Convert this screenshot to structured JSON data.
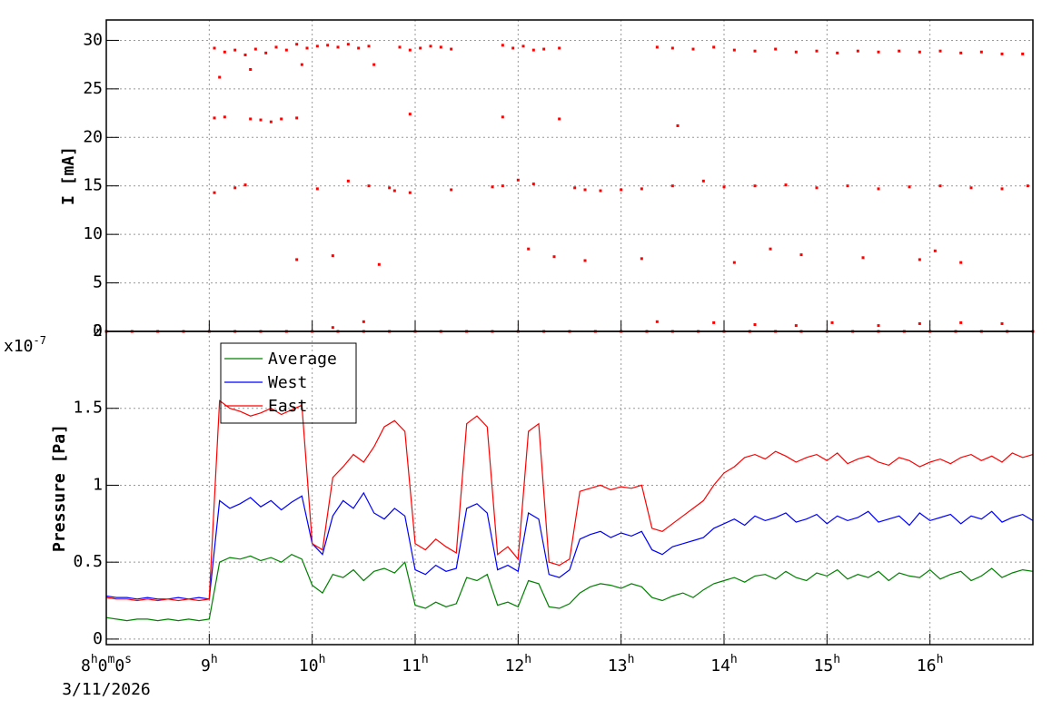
{
  "chart_data": [
    {
      "type": "scatter",
      "ylabel": "I [mA]",
      "color": "#ff0000",
      "xlim": [
        8,
        17
      ],
      "ylim": [
        0,
        32.1
      ],
      "yticks": [
        0,
        5,
        10,
        15,
        20,
        25,
        30
      ],
      "grid": true,
      "x": [
        9.05,
        9.15,
        9.25,
        9.35,
        9.45,
        9.55,
        9.65,
        9.75,
        9.85,
        9.95,
        10.05,
        10.15,
        10.25,
        10.35,
        10.45,
        10.55,
        10.85,
        10.95,
        11.05,
        11.15,
        11.25,
        11.35,
        11.85,
        11.95,
        12.05,
        12.15,
        12.25,
        12.4,
        13.35,
        13.5,
        13.7,
        13.9,
        14.1,
        14.3,
        14.5,
        14.7,
        14.9,
        15.1,
        15.3,
        15.5,
        15.7,
        15.9,
        16.1,
        16.3,
        16.5,
        16.7,
        16.9,
        9.1,
        9.4,
        10.6,
        9.9,
        9.05,
        9.15,
        9.4,
        9.5,
        9.6,
        9.7,
        9.85,
        10.95,
        11.85,
        12.4,
        13.55,
        9.05,
        9.25,
        9.35,
        10.05,
        10.35,
        10.55,
        10.75,
        10.8,
        10.95,
        11.35,
        11.75,
        11.85,
        12.0,
        12.15,
        12.55,
        12.65,
        12.8,
        13.0,
        13.2,
        13.5,
        13.8,
        14.0,
        14.3,
        14.6,
        14.9,
        15.2,
        15.5,
        15.8,
        16.1,
        16.4,
        16.7,
        16.95,
        9.85,
        10.2,
        12.1,
        12.35,
        12.65,
        13.2,
        14.1,
        14.45,
        14.75,
        15.35,
        15.9,
        16.05,
        16.3,
        10.65,
        10.2,
        10.5,
        13.35,
        13.9,
        14.3,
        14.7,
        15.05,
        15.5,
        15.9,
        16.3,
        16.7,
        8.0,
        8.25,
        8.5,
        8.75,
        9.0,
        9.25,
        9.5,
        9.75,
        10.0,
        10.25,
        10.5,
        10.75,
        11.0,
        11.25,
        11.5,
        11.75,
        12.0,
        12.25,
        12.5,
        12.75,
        13.0,
        13.25,
        13.5,
        13.75,
        14.0,
        14.25,
        14.5,
        14.75,
        15.0,
        15.25,
        15.5,
        15.75,
        16.0,
        16.25,
        16.5,
        16.75,
        17.0
      ],
      "values": [
        29.2,
        28.8,
        29.0,
        28.5,
        29.1,
        28.7,
        29.3,
        29.0,
        29.6,
        29.2,
        29.4,
        29.5,
        29.3,
        29.6,
        29.2,
        29.4,
        29.3,
        29.0,
        29.2,
        29.4,
        29.3,
        29.1,
        29.5,
        29.2,
        29.4,
        29.0,
        29.1,
        29.2,
        29.3,
        29.2,
        29.1,
        29.3,
        29.0,
        28.9,
        29.1,
        28.8,
        28.9,
        28.7,
        28.9,
        28.8,
        28.9,
        28.8,
        28.9,
        28.7,
        28.8,
        28.6,
        28.6,
        26.2,
        27.0,
        27.5,
        27.5,
        22.0,
        22.1,
        21.9,
        21.8,
        21.6,
        21.9,
        22.0,
        22.4,
        22.1,
        21.9,
        21.2,
        14.3,
        14.8,
        15.1,
        14.7,
        15.5,
        15.0,
        14.8,
        14.5,
        14.3,
        14.6,
        14.9,
        15.0,
        15.6,
        15.2,
        14.8,
        14.6,
        14.5,
        14.6,
        14.7,
        15.0,
        15.5,
        14.9,
        15.0,
        15.1,
        14.8,
        15.0,
        14.7,
        14.9,
        15.0,
        14.8,
        14.7,
        15.0,
        7.4,
        7.8,
        8.5,
        7.7,
        7.3,
        7.5,
        7.1,
        8.5,
        7.9,
        7.6,
        7.4,
        8.3,
        7.1,
        6.9,
        0.4,
        1.0,
        1.0,
        0.9,
        0.7,
        0.6,
        0.9,
        0.6,
        0.8,
        0.9,
        0.8,
        0,
        0,
        0,
        0,
        0,
        0,
        0,
        0,
        0,
        0,
        0,
        0,
        0,
        0,
        0,
        0,
        0,
        0,
        0,
        0,
        0,
        0,
        0,
        0,
        0,
        0,
        0,
        0,
        0,
        0,
        0,
        0,
        0,
        0,
        0,
        0,
        0
      ]
    },
    {
      "type": "line",
      "ylabel": "Pressure [Pa]",
      "y_multiplier": "x10-7",
      "time_offset_label": "3/11/2026",
      "xlim": [
        8,
        17
      ],
      "ylim": [
        -0.036,
        2
      ],
      "yticks": [
        0,
        0.5,
        1,
        1.5,
        2
      ],
      "grid": true,
      "legend": "top-left",
      "xticks": [
        {
          "value": 8,
          "label": "8h0m0s"
        },
        {
          "value": 9,
          "label": "9h"
        },
        {
          "value": 10,
          "label": "10h"
        },
        {
          "value": 11,
          "label": "11h"
        },
        {
          "value": 12,
          "label": "12h"
        },
        {
          "value": 13,
          "label": "13h"
        },
        {
          "value": 14,
          "label": "14h"
        },
        {
          "value": 15,
          "label": "15h"
        },
        {
          "value": 16,
          "label": "16h"
        }
      ],
      "x": [
        8,
        8.1,
        8.2,
        8.3,
        8.4,
        8.5,
        8.6,
        8.7,
        8.8,
        8.9,
        9,
        9.1,
        9.2,
        9.3,
        9.4,
        9.5,
        9.6,
        9.7,
        9.8,
        9.9,
        10,
        10.1,
        10.2,
        10.3,
        10.4,
        10.5,
        10.6,
        10.7,
        10.8,
        10.9,
        11,
        11.1,
        11.2,
        11.3,
        11.4,
        11.5,
        11.6,
        11.7,
        11.8,
        11.9,
        12,
        12.1,
        12.2,
        12.3,
        12.4,
        12.5,
        12.6,
        12.7,
        12.8,
        12.9,
        13,
        13.1,
        13.2,
        13.3,
        13.4,
        13.5,
        13.6,
        13.7,
        13.8,
        13.9,
        14,
        14.1,
        14.2,
        14.3,
        14.4,
        14.5,
        14.6,
        14.7,
        14.8,
        14.9,
        15,
        15.1,
        15.2,
        15.3,
        15.4,
        15.5,
        15.6,
        15.7,
        15.8,
        15.9,
        16,
        16.1,
        16.2,
        16.3,
        16.4,
        16.5,
        16.6,
        16.7,
        16.8,
        16.9,
        17
      ],
      "series": [
        {
          "name": "Average",
          "color": "#008000",
          "values": [
            0.14,
            0.13,
            0.12,
            0.13,
            0.13,
            0.12,
            0.13,
            0.12,
            0.13,
            0.12,
            0.13,
            0.5,
            0.53,
            0.52,
            0.54,
            0.51,
            0.53,
            0.5,
            0.55,
            0.52,
            0.35,
            0.3,
            0.42,
            0.4,
            0.45,
            0.38,
            0.44,
            0.46,
            0.43,
            0.5,
            0.22,
            0.2,
            0.24,
            0.21,
            0.23,
            0.4,
            0.38,
            0.42,
            0.22,
            0.24,
            0.21,
            0.38,
            0.36,
            0.21,
            0.2,
            0.23,
            0.3,
            0.34,
            0.36,
            0.35,
            0.33,
            0.36,
            0.34,
            0.27,
            0.25,
            0.28,
            0.3,
            0.27,
            0.32,
            0.36,
            0.38,
            0.4,
            0.37,
            0.41,
            0.42,
            0.39,
            0.44,
            0.4,
            0.38,
            0.43,
            0.41,
            0.45,
            0.39,
            0.42,
            0.4,
            0.44,
            0.38,
            0.43,
            0.41,
            0.4,
            0.45,
            0.39,
            0.42,
            0.44,
            0.38,
            0.41,
            0.46,
            0.4,
            0.43,
            0.45,
            0.44
          ]
        },
        {
          "name": "West",
          "color": "#0000ff",
          "values": [
            0.28,
            0.27,
            0.27,
            0.26,
            0.27,
            0.26,
            0.26,
            0.27,
            0.26,
            0.27,
            0.26,
            0.9,
            0.85,
            0.88,
            0.92,
            0.86,
            0.9,
            0.84,
            0.89,
            0.93,
            0.62,
            0.55,
            0.8,
            0.9,
            0.85,
            0.95,
            0.82,
            0.78,
            0.85,
            0.8,
            0.45,
            0.42,
            0.48,
            0.44,
            0.46,
            0.85,
            0.88,
            0.82,
            0.45,
            0.48,
            0.44,
            0.82,
            0.78,
            0.42,
            0.4,
            0.45,
            0.65,
            0.68,
            0.7,
            0.66,
            0.69,
            0.67,
            0.7,
            0.58,
            0.55,
            0.6,
            0.62,
            0.64,
            0.66,
            0.72,
            0.75,
            0.78,
            0.74,
            0.8,
            0.77,
            0.79,
            0.82,
            0.76,
            0.78,
            0.81,
            0.75,
            0.8,
            0.77,
            0.79,
            0.83,
            0.76,
            0.78,
            0.8,
            0.74,
            0.82,
            0.77,
            0.79,
            0.81,
            0.75,
            0.8,
            0.78,
            0.83,
            0.76,
            0.79,
            0.81,
            0.77
          ]
        },
        {
          "name": "East",
          "color": "#ff0000",
          "values": [
            0.27,
            0.26,
            0.26,
            0.25,
            0.26,
            0.25,
            0.26,
            0.25,
            0.26,
            0.25,
            0.26,
            1.55,
            1.5,
            1.48,
            1.45,
            1.47,
            1.5,
            1.46,
            1.49,
            1.52,
            0.62,
            0.58,
            1.05,
            1.12,
            1.2,
            1.15,
            1.25,
            1.38,
            1.42,
            1.35,
            0.62,
            0.58,
            0.65,
            0.6,
            0.56,
            1.4,
            1.45,
            1.38,
            0.55,
            0.6,
            0.52,
            1.35,
            1.4,
            0.5,
            0.48,
            0.52,
            0.96,
            0.98,
            1.0,
            0.97,
            0.99,
            0.98,
            1.0,
            0.72,
            0.7,
            0.75,
            0.8,
            0.85,
            0.9,
            1.0,
            1.08,
            1.12,
            1.18,
            1.2,
            1.17,
            1.22,
            1.19,
            1.15,
            1.18,
            1.2,
            1.16,
            1.21,
            1.14,
            1.17,
            1.19,
            1.15,
            1.13,
            1.18,
            1.16,
            1.12,
            1.15,
            1.17,
            1.14,
            1.18,
            1.2,
            1.16,
            1.19,
            1.15,
            1.21,
            1.18,
            1.2
          ]
        }
      ]
    }
  ]
}
